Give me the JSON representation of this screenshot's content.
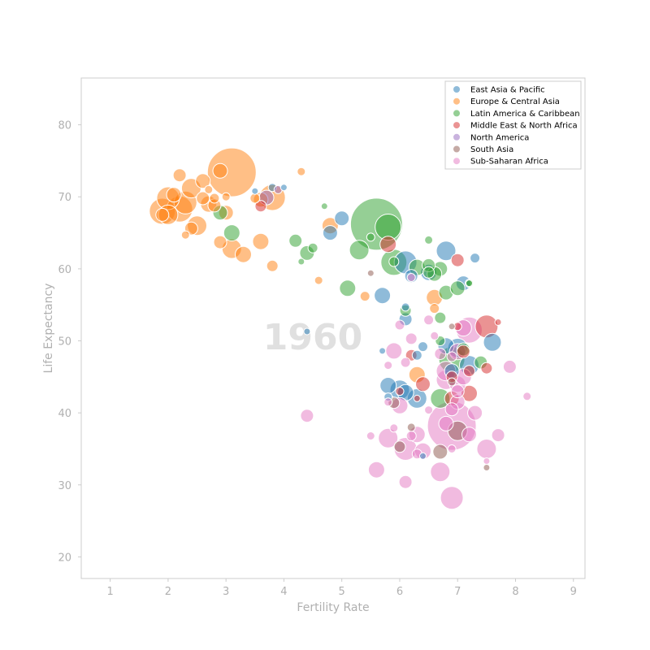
{
  "chart_data": {
    "type": "scatter",
    "xlabel": "Fertility Rate",
    "ylabel": "Life Expectancy",
    "annotation": "1960",
    "xlim": [
      0.5,
      9.2
    ],
    "ylim": [
      17,
      86.5
    ],
    "x_ticks": [
      "1",
      "2",
      "3",
      "4",
      "5",
      "6",
      "7",
      "8",
      "9"
    ],
    "y_ticks": [
      "20",
      "30",
      "40",
      "50",
      "60",
      "70",
      "80"
    ],
    "legend_position": "top-right",
    "grid": false,
    "series": [
      {
        "name": "East Asia & Pacific",
        "color": "#1f77b4",
        "points": [
          [
            6.1,
            60.9,
            14
          ],
          [
            5.7,
            56.3,
            10
          ],
          [
            6.8,
            62.5,
            12
          ],
          [
            7.3,
            61.5,
            6
          ],
          [
            6.5,
            59.5,
            10
          ],
          [
            6.2,
            59.0,
            8
          ],
          [
            6.1,
            54.7,
            5
          ],
          [
            6.1,
            53.0,
            8
          ],
          [
            7.6,
            49.8,
            11
          ],
          [
            6.8,
            49.3,
            10
          ],
          [
            7.0,
            49.0,
            12
          ],
          [
            7.2,
            46.6,
            12
          ],
          [
            5.8,
            43.8,
            10
          ],
          [
            6.0,
            43.2,
            12
          ],
          [
            6.1,
            42.8,
            10
          ],
          [
            6.3,
            42.0,
            12
          ],
          [
            6.3,
            48.0,
            6
          ],
          [
            5.8,
            42.2,
            5
          ],
          [
            6.4,
            49.2,
            6
          ],
          [
            5.7,
            48.6,
            4
          ],
          [
            4.4,
            51.3,
            4
          ],
          [
            3.8,
            71.3,
            5
          ],
          [
            4.0,
            71.3,
            4
          ],
          [
            3.5,
            70.8,
            4
          ],
          [
            4.8,
            65.0,
            9
          ],
          [
            5.0,
            67.0,
            9
          ],
          [
            7.1,
            58.0,
            9
          ],
          [
            6.4,
            34.0,
            4
          ],
          [
            6.9,
            45.8,
            9
          ]
        ]
      },
      {
        "name": "Europe & Central Asia",
        "color": "#ff7f0e",
        "points": [
          [
            3.1,
            73.4,
            30
          ],
          [
            1.9,
            68.0,
            16
          ],
          [
            2.2,
            68.3,
            16
          ],
          [
            2.3,
            69.2,
            14
          ],
          [
            2.0,
            69.8,
            14
          ],
          [
            2.5,
            66.0,
            12
          ],
          [
            2.0,
            67.5,
            12
          ],
          [
            2.1,
            70.3,
            9
          ],
          [
            2.2,
            73.0,
            8
          ],
          [
            2.4,
            71.2,
            12
          ],
          [
            2.6,
            72.2,
            9
          ],
          [
            2.9,
            73.6,
            9
          ],
          [
            2.7,
            69.0,
            10
          ],
          [
            2.6,
            69.8,
            8
          ],
          [
            2.8,
            68.8,
            8
          ],
          [
            3.0,
            67.8,
            9
          ],
          [
            3.1,
            62.8,
            12
          ],
          [
            3.3,
            62.0,
            10
          ],
          [
            3.6,
            63.8,
            10
          ],
          [
            3.8,
            60.4,
            7
          ],
          [
            2.4,
            65.6,
            8
          ],
          [
            2.3,
            64.7,
            5
          ],
          [
            3.8,
            69.9,
            16
          ],
          [
            3.6,
            69.6,
            9
          ],
          [
            4.8,
            66.0,
            10
          ],
          [
            4.6,
            58.4,
            5
          ],
          [
            4.3,
            73.5,
            5
          ],
          [
            5.4,
            56.2,
            6
          ],
          [
            6.3,
            45.3,
            10
          ],
          [
            6.6,
            56.0,
            10
          ],
          [
            6.6,
            54.5,
            6
          ],
          [
            2.9,
            63.7,
            8
          ],
          [
            3.5,
            69.8,
            6
          ],
          [
            2.8,
            69.8,
            6
          ],
          [
            2.7,
            71.0,
            5
          ],
          [
            3.0,
            70.0,
            5
          ],
          [
            1.9,
            67.5,
            8
          ]
        ]
      },
      {
        "name": "Latin America & Caribbean",
        "color": "#2ca02c",
        "points": [
          [
            5.6,
            66.2,
            32
          ],
          [
            5.8,
            65.8,
            16
          ],
          [
            5.9,
            60.9,
            16
          ],
          [
            5.3,
            62.6,
            12
          ],
          [
            5.1,
            57.3,
            10
          ],
          [
            4.2,
            63.9,
            8
          ],
          [
            4.4,
            62.2,
            9
          ],
          [
            4.5,
            62.9,
            6
          ],
          [
            4.7,
            68.7,
            4
          ],
          [
            4.3,
            61.0,
            4
          ],
          [
            5.5,
            64.4,
            5
          ],
          [
            6.3,
            60.2,
            10
          ],
          [
            6.5,
            60.5,
            8
          ],
          [
            6.7,
            60.0,
            9
          ],
          [
            6.6,
            59.3,
            9
          ],
          [
            6.8,
            56.7,
            9
          ],
          [
            7.0,
            57.3,
            9
          ],
          [
            7.2,
            58.0,
            5
          ],
          [
            6.1,
            54.2,
            7
          ],
          [
            6.7,
            53.2,
            7
          ],
          [
            6.7,
            50.0,
            6
          ],
          [
            6.9,
            47.4,
            16
          ],
          [
            7.1,
            48.8,
            8
          ],
          [
            7.4,
            47.0,
            8
          ],
          [
            6.7,
            42.0,
            12
          ],
          [
            6.5,
            64.0,
            5
          ],
          [
            2.9,
            67.8,
            9
          ],
          [
            3.1,
            65.0,
            10
          ],
          [
            5.9,
            61.0,
            6
          ],
          [
            6.5,
            59.5,
            7
          ],
          [
            7.2,
            58.0,
            4
          ]
        ]
      },
      {
        "name": "Middle East & North Africa",
        "color": "#d62728",
        "points": [
          [
            7.5,
            52.0,
            14
          ],
          [
            7.1,
            48.5,
            8
          ],
          [
            7.0,
            61.2,
            8
          ],
          [
            5.8,
            63.4,
            10
          ],
          [
            6.4,
            44.0,
            9
          ],
          [
            6.9,
            42.0,
            9
          ],
          [
            7.2,
            42.7,
            10
          ],
          [
            7.5,
            46.2,
            7
          ],
          [
            6.9,
            45.0,
            7
          ],
          [
            6.2,
            48.0,
            7
          ],
          [
            7.2,
            45.8,
            7
          ],
          [
            3.6,
            68.7,
            7
          ],
          [
            6.0,
            43.0,
            5
          ],
          [
            7.0,
            52.0,
            5
          ],
          [
            7.7,
            52.6,
            4
          ],
          [
            6.3,
            42.0,
            4
          ]
        ]
      },
      {
        "name": "North America",
        "color": "#9467bd",
        "points": [
          [
            3.7,
            69.9,
            9
          ],
          [
            3.9,
            71.0,
            5
          ]
        ]
      },
      {
        "name": "South Asia",
        "color": "#8c564b",
        "points": [
          [
            5.9,
            41.4,
            7
          ],
          [
            6.7,
            34.6,
            9
          ],
          [
            7.0,
            37.5,
            12
          ],
          [
            6.0,
            35.3,
            7
          ],
          [
            6.2,
            38.0,
            5
          ],
          [
            6.9,
            44.3,
            5
          ],
          [
            5.5,
            59.4,
            4
          ],
          [
            7.5,
            32.4,
            4
          ],
          [
            6.9,
            52.0,
            4
          ]
        ]
      },
      {
        "name": "Sub-Saharan Africa",
        "color": "#e377c2",
        "points": [
          [
            6.9,
            38.2,
            30
          ],
          [
            6.9,
            28.2,
            14
          ],
          [
            7.2,
            51.5,
            16
          ],
          [
            7.1,
            51.8,
            10
          ],
          [
            6.1,
            35.0,
            14
          ],
          [
            5.8,
            36.5,
            12
          ],
          [
            6.0,
            41.0,
            10
          ],
          [
            6.4,
            34.7,
            10
          ],
          [
            6.7,
            31.8,
            12
          ],
          [
            5.6,
            32.1,
            10
          ],
          [
            6.1,
            30.4,
            8
          ],
          [
            7.5,
            35.0,
            12
          ],
          [
            7.0,
            44.0,
            10
          ],
          [
            6.8,
            44.6,
            12
          ],
          [
            7.1,
            45.0,
            10
          ],
          [
            7.0,
            41.5,
            9
          ],
          [
            7.3,
            40.0,
            9
          ],
          [
            7.0,
            48.5,
            10
          ],
          [
            6.9,
            40.5,
            8
          ],
          [
            6.3,
            37.0,
            10
          ],
          [
            5.9,
            48.6,
            10
          ],
          [
            6.2,
            50.3,
            7
          ],
          [
            6.0,
            52.2,
            6
          ],
          [
            6.5,
            52.9,
            6
          ],
          [
            6.1,
            47.0,
            6
          ],
          [
            6.7,
            48.2,
            7
          ],
          [
            7.7,
            36.9,
            8
          ],
          [
            7.9,
            46.4,
            8
          ],
          [
            8.2,
            42.3,
            5
          ],
          [
            4.4,
            39.6,
            8
          ],
          [
            6.8,
            38.5,
            9
          ],
          [
            7.2,
            37.0,
            9
          ],
          [
            6.5,
            40.4,
            5
          ],
          [
            6.2,
            36.8,
            6
          ],
          [
            5.5,
            36.8,
            5
          ],
          [
            5.8,
            41.5,
            5
          ],
          [
            6.9,
            35.0,
            5
          ],
          [
            7.5,
            33.3,
            4
          ],
          [
            5.9,
            37.9,
            5
          ],
          [
            6.6,
            50.7,
            5
          ],
          [
            5.8,
            46.6,
            5
          ],
          [
            6.8,
            45.8,
            12
          ],
          [
            7.0,
            43.0,
            8
          ],
          [
            6.9,
            47.8,
            6
          ],
          [
            6.2,
            58.8,
            5
          ],
          [
            6.3,
            34.3,
            6
          ]
        ]
      }
    ]
  }
}
